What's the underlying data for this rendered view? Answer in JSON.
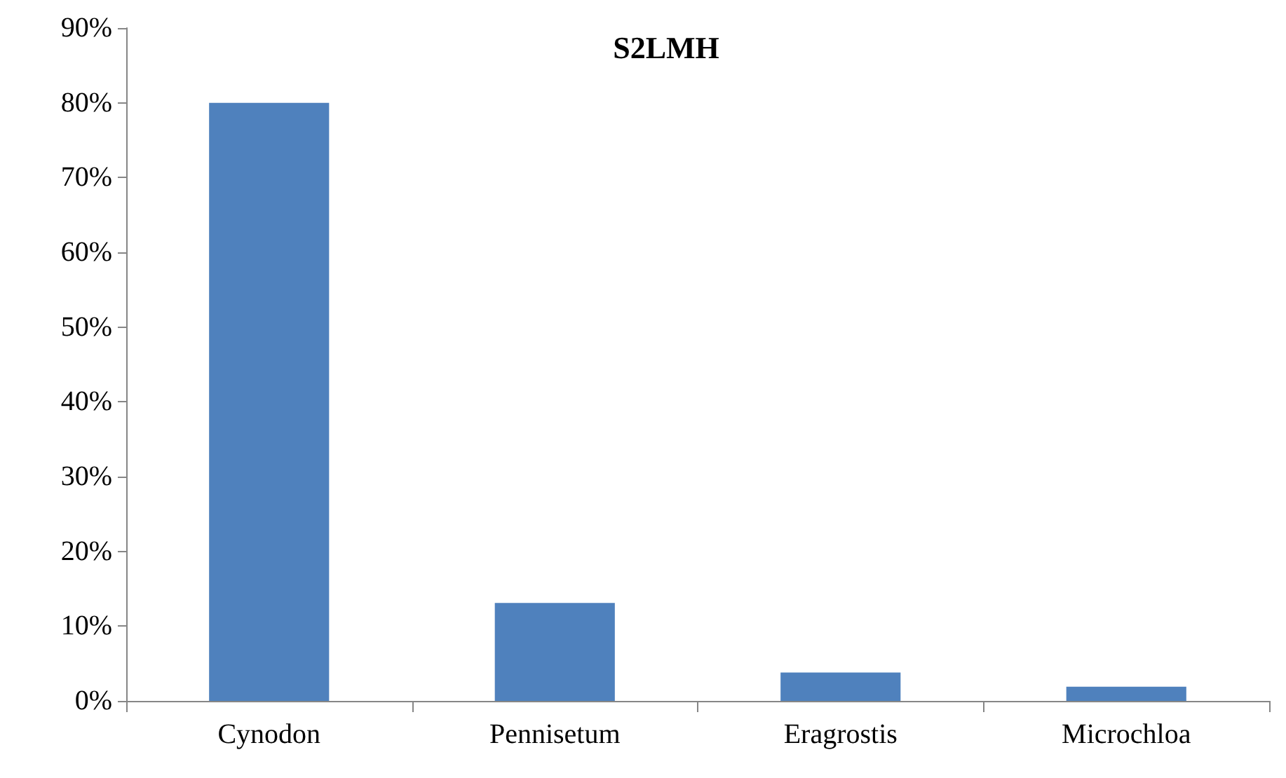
{
  "chart_data": {
    "type": "bar",
    "title": "S2LMH",
    "categories": [
      "Cynodon",
      "Pennisetum",
      "Eragrostis",
      "Microchloa"
    ],
    "values": [
      80,
      13.1,
      3.8,
      1.9
    ],
    "color": "#4f81bd",
    "ylim": [
      0,
      90
    ],
    "yticks": [
      {
        "value": 0,
        "label": "0%"
      },
      {
        "value": 10,
        "label": "10%"
      },
      {
        "value": 20,
        "label": "20%"
      },
      {
        "value": 30,
        "label": "30%"
      },
      {
        "value": 40,
        "label": "40%"
      },
      {
        "value": 50,
        "label": "50%"
      },
      {
        "value": 60,
        "label": "60%"
      },
      {
        "value": 70,
        "label": "70%"
      },
      {
        "value": 80,
        "label": "80%"
      },
      {
        "value": 90,
        "label": "90%"
      }
    ],
    "grid": false
  }
}
